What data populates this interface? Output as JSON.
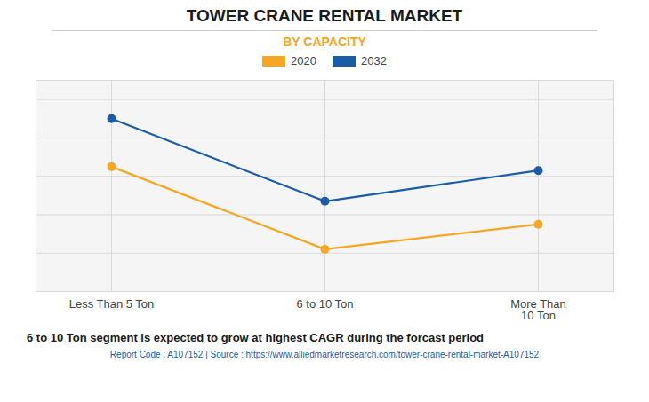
{
  "chart_data": {
    "type": "line",
    "title": "TOWER CRANE RENTAL MARKET",
    "subtitle": "BY CAPACITY",
    "categories": [
      "Less Than 5 Ton",
      "6 to 10 Ton",
      "More Than\n10 Ton"
    ],
    "series": [
      {
        "name": "2020",
        "color": "#F5A623",
        "values": [
          65,
          22,
          35
        ]
      },
      {
        "name": "2032",
        "color": "#1A5CA8",
        "values": [
          90,
          47,
          63
        ]
      }
    ],
    "ylim": [
      0,
      110
    ],
    "yticks": [
      0,
      20,
      40,
      60,
      80,
      100
    ],
    "grid": true,
    "tick_labels": "x",
    "legend": "top",
    "marker": "circle",
    "caption": "6 to 10 Ton segment is expected to grow at highest CAGR during the forcast period",
    "source": "Report Code : A107152  |  Source : https://www.alliedmarketresearch.com/tower-crane-rental-market-A107152"
  }
}
